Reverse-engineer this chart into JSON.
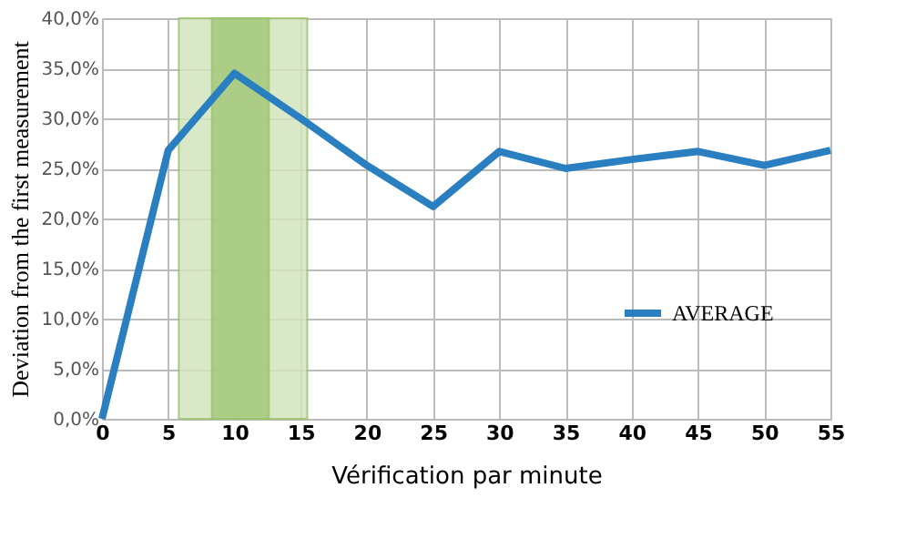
{
  "chart_data": {
    "type": "line",
    "xlabel": "Vérification par minute",
    "ylabel": "Deviation from the first measurement",
    "x": [
      0,
      5,
      10,
      15,
      20,
      25,
      30,
      35,
      40,
      45,
      50,
      55
    ],
    "series": [
      {
        "name": "AVERAGE",
        "color": "#2a7fc1",
        "values": [
          0,
          26.8,
          34.5,
          30,
          25.3,
          21.2,
          26.7,
          25,
          25.9,
          26.7,
          25.3,
          26.8
        ]
      }
    ],
    "xlim": [
      0,
      55
    ],
    "xticks": [
      0,
      5,
      10,
      15,
      20,
      25,
      30,
      35,
      40,
      45,
      50,
      55
    ],
    "ylim": [
      0,
      40
    ],
    "yticks": [
      {
        "value": 0,
        "label": "0,0%"
      },
      {
        "value": 5,
        "label": "5,0%"
      },
      {
        "value": 10,
        "label": "10,0%"
      },
      {
        "value": 15,
        "label": "15,0%"
      },
      {
        "value": 20,
        "label": "20,0%"
      },
      {
        "value": 25,
        "label": "25,0%"
      },
      {
        "value": 30,
        "label": "30,0%"
      },
      {
        "value": 35,
        "label": "35,0%"
      },
      {
        "value": 40,
        "label": "40,0%"
      }
    ],
    "bands": [
      {
        "axis": "x",
        "from": 5.8,
        "to": 15.5,
        "color": "#d3e4bd"
      },
      {
        "axis": "x",
        "from": 8.3,
        "to": 12.6,
        "color": "#a4c97a"
      }
    ],
    "grid": true,
    "legend": "right",
    "line_style": "solid",
    "marker": "none"
  }
}
